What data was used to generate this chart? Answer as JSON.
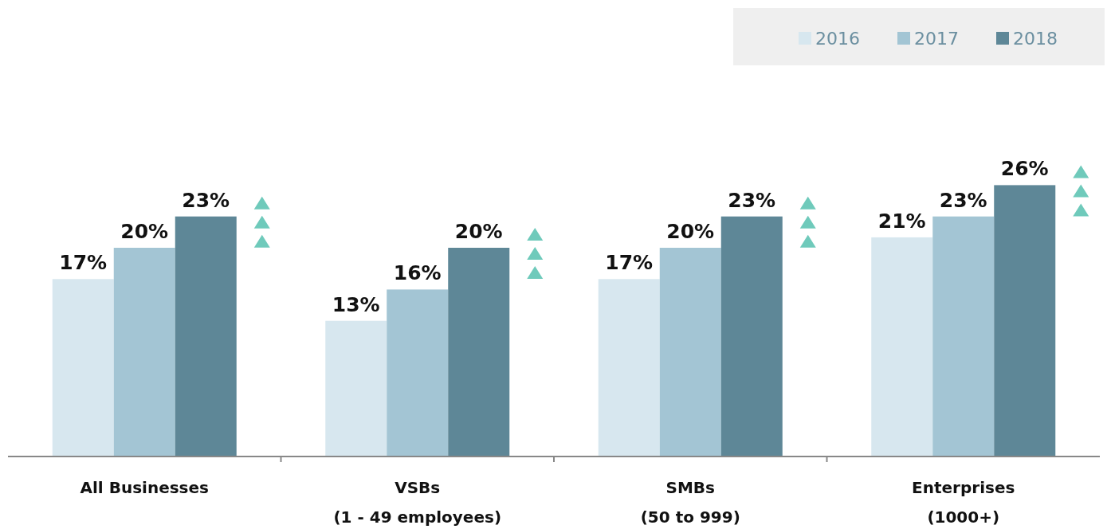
{
  "chart_data": {
    "type": "bar",
    "categories": [
      "All Businesses",
      "VSBs\n(1 - 49 employees)",
      "SMBs\n(50 to 999)",
      "Enterprises\n(1000+)"
    ],
    "series": [
      {
        "name": "2016",
        "color": "#d7e7ef",
        "values": [
          17,
          13,
          17,
          21
        ],
        "value_labels": [
          "17%",
          "13%",
          "17%",
          "21%"
        ]
      },
      {
        "name": "2017",
        "color": "#a3c5d4",
        "values": [
          20,
          16,
          20,
          23
        ],
        "value_labels": [
          "20%",
          "16%",
          "20%",
          "23%"
        ]
      },
      {
        "name": "2018",
        "color": "#5e8797",
        "values": [
          23,
          20,
          23,
          26
        ],
        "value_labels": [
          "23%",
          "20%",
          "23%",
          "26%"
        ]
      }
    ],
    "legend": "top right"
  }
}
